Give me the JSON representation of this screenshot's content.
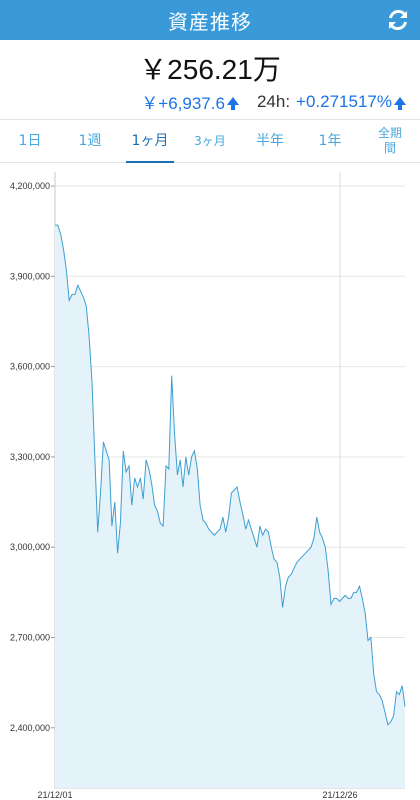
{
  "header": {
    "title": "資産推移",
    "refresh_icon": "refresh-icon"
  },
  "summary": {
    "total": "￥256.21万",
    "change_amount": "￥+6,937.6",
    "change_label": "24h:",
    "change_percent": "+0.271517%"
  },
  "tabs": [
    {
      "label": "1日",
      "active": false
    },
    {
      "label": "1週",
      "active": false
    },
    {
      "label": "1ヶ月",
      "active": true
    },
    {
      "label": "3ヶ月",
      "active": false
    },
    {
      "label": "半年",
      "active": false
    },
    {
      "label": "1年",
      "active": false
    },
    {
      "label": "全期間",
      "active": false
    }
  ],
  "colors": {
    "accent": "#3a9ad9",
    "line": "#3d9fd1",
    "fill": "#e4f2fa"
  },
  "chart_data": {
    "type": "area",
    "x_labels": [
      "21/12/01",
      "21/12/26"
    ],
    "y_ticks": [
      "4,200,000",
      "3,900,000",
      "3,600,000",
      "3,300,000",
      "3,000,000",
      "2,700,000",
      "2,400,000"
    ],
    "ylim": [
      2200000,
      4200000
    ],
    "values": [
      4070000,
      4070000,
      4040000,
      3990000,
      3920000,
      3820000,
      3840000,
      3840000,
      3870000,
      3850000,
      3830000,
      3800000,
      3700000,
      3550000,
      3300000,
      3050000,
      3180000,
      3350000,
      3320000,
      3290000,
      3070000,
      3150000,
      2980000,
      3080000,
      3320000,
      3250000,
      3270000,
      3140000,
      3230000,
      3200000,
      3230000,
      3160000,
      3290000,
      3260000,
      3210000,
      3140000,
      3120000,
      3080000,
      3070000,
      3270000,
      3260000,
      3570000,
      3380000,
      3240000,
      3290000,
      3200000,
      3300000,
      3240000,
      3300000,
      3320000,
      3260000,
      3140000,
      3090000,
      3080000,
      3060000,
      3050000,
      3040000,
      3050000,
      3060000,
      3100000,
      3050000,
      3100000,
      3180000,
      3190000,
      3200000,
      3150000,
      3110000,
      3060000,
      3090000,
      3060000,
      3030000,
      3000000,
      3070000,
      3040000,
      3060000,
      3050000,
      3000000,
      2960000,
      2950000,
      2900000,
      2800000,
      2870000,
      2900000,
      2910000,
      2930000,
      2950000,
      2960000,
      2970000,
      2980000,
      2990000,
      3000000,
      3030000,
      3100000,
      3050000,
      3030000,
      3000000,
      2920000,
      2810000,
      2830000,
      2830000,
      2820000,
      2830000,
      2840000,
      2830000,
      2830000,
      2850000,
      2850000,
      2870000,
      2830000,
      2780000,
      2690000,
      2700000,
      2580000,
      2520000,
      2510000,
      2490000,
      2450000,
      2410000,
      2420000,
      2440000,
      2520000,
      2510000,
      2540000,
      2470000
    ]
  }
}
